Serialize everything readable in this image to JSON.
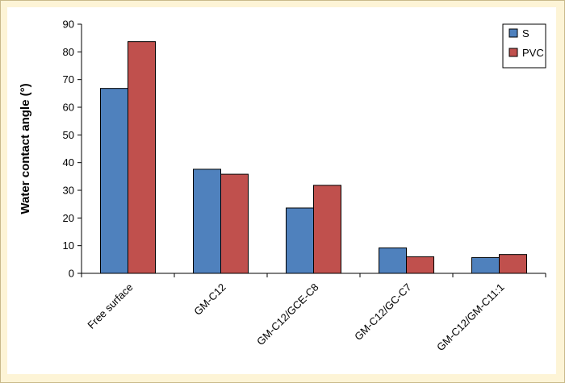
{
  "chart_data": {
    "type": "bar",
    "title": "",
    "xlabel": "",
    "ylabel": "Water contact angle (°)",
    "ylim": [
      0,
      90
    ],
    "yticks": [
      0,
      10,
      20,
      30,
      40,
      50,
      60,
      70,
      80,
      90
    ],
    "categories": [
      "Free surface",
      "GM-C12",
      "GM-C12/GCE-C8",
      "GM-C12/GC-C7",
      "GM-C12/GM-C11:1"
    ],
    "series": [
      {
        "name": "S",
        "color": "#4f81bd",
        "values": [
          66.8,
          37.6,
          23.6,
          9.2,
          5.7
        ]
      },
      {
        "name": "PVC",
        "color": "#c0504d",
        "values": [
          83.7,
          35.8,
          31.8,
          6.0,
          6.8
        ]
      }
    ],
    "legend_position": "top-right",
    "grid": false,
    "background_color": "#fdf4d6"
  }
}
